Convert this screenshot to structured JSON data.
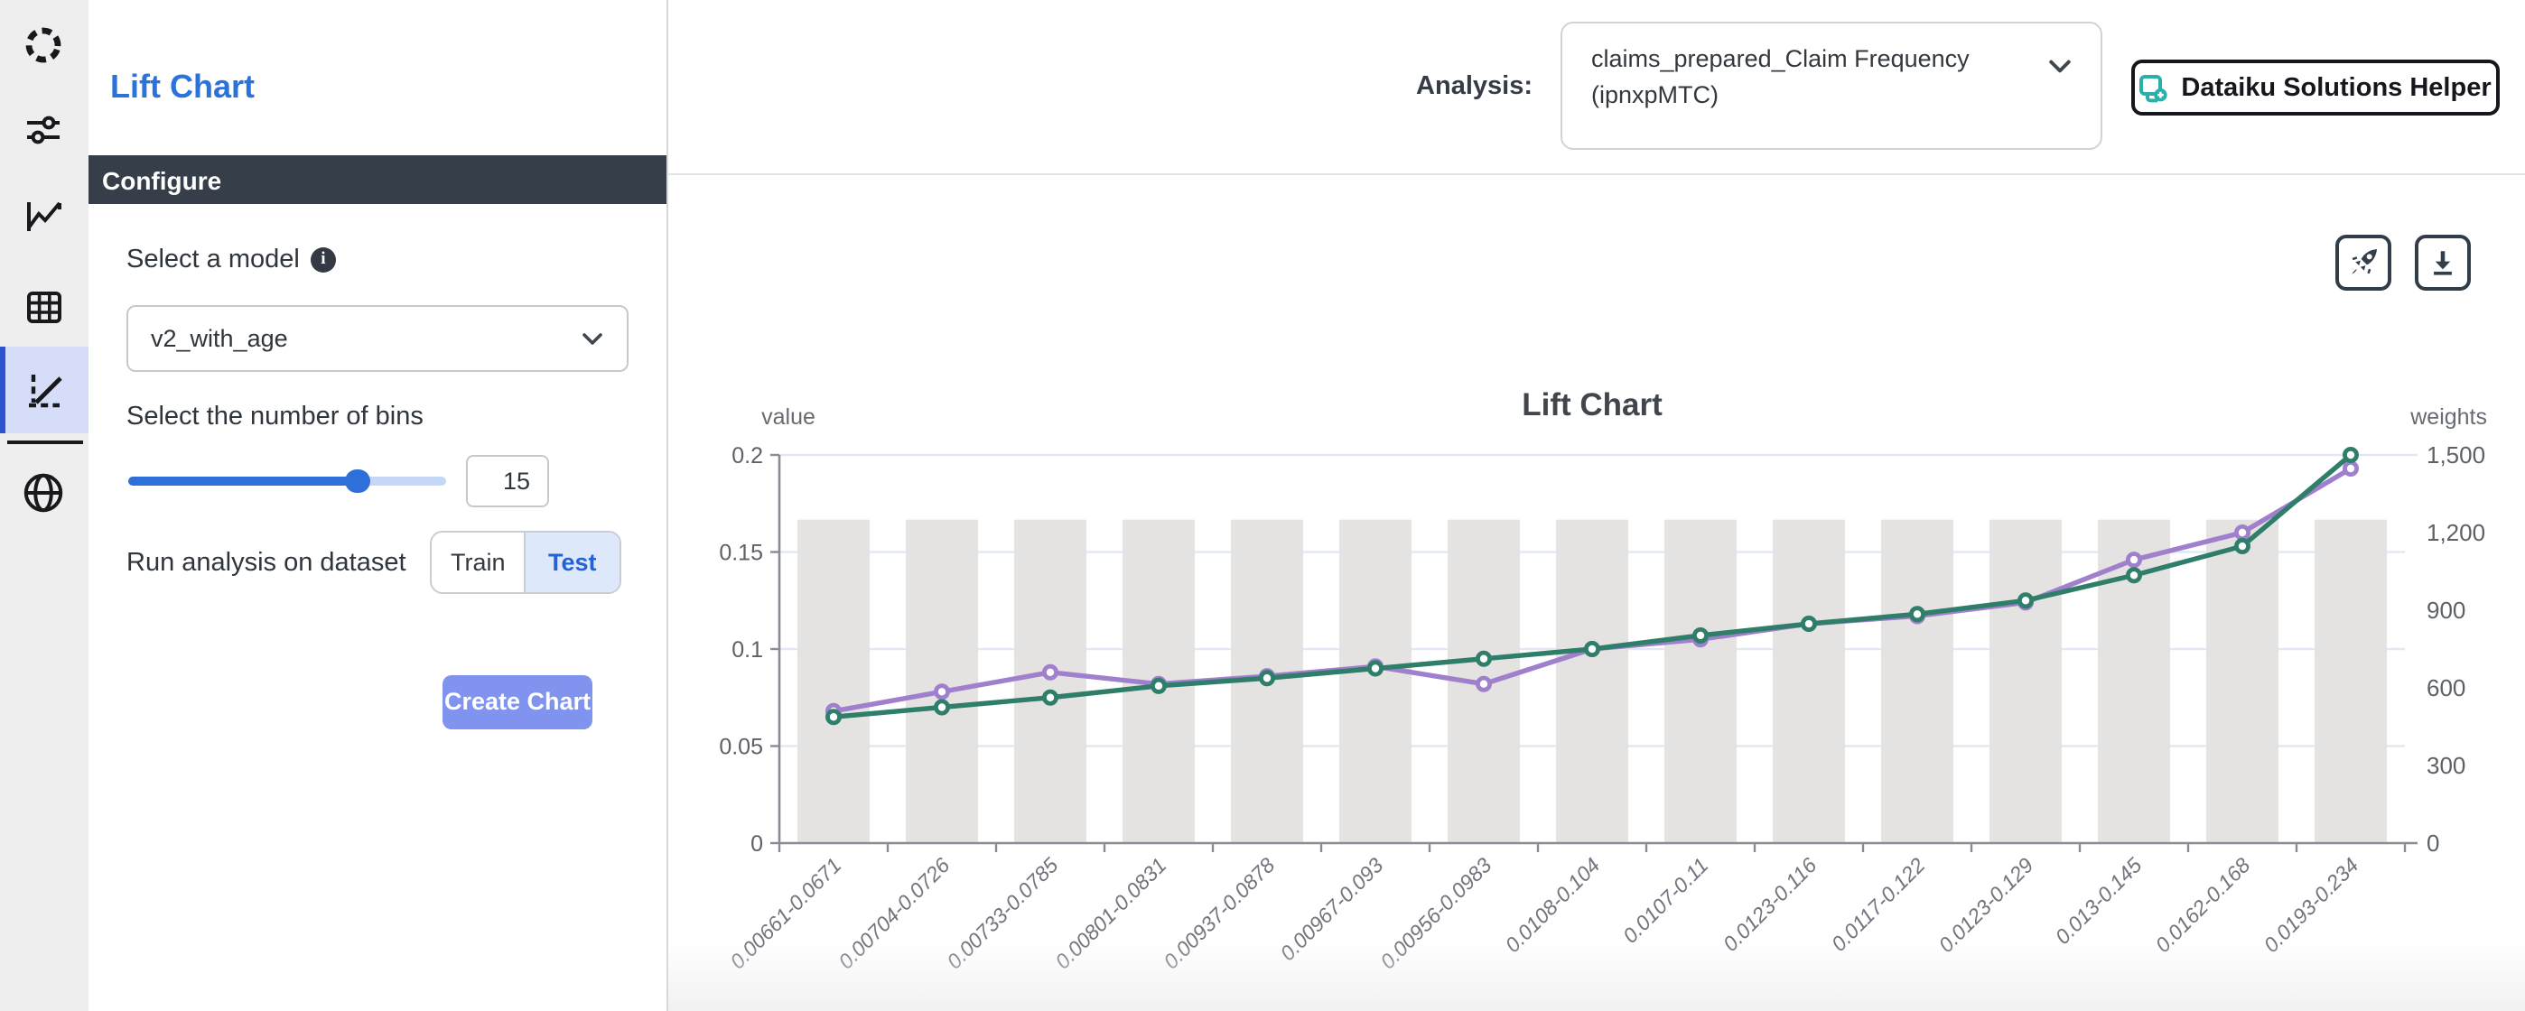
{
  "sidebar": {
    "icons": [
      {
        "name": "spinner-ring-icon"
      },
      {
        "name": "sliders-icon"
      },
      {
        "name": "line-chart-icon"
      },
      {
        "name": "table-icon"
      },
      {
        "name": "axes-chart-icon",
        "selected": true
      },
      {
        "name": "globe-icon"
      }
    ]
  },
  "panel": {
    "title": "Lift Chart",
    "section_header": "Configure",
    "model_label": "Select a model",
    "info_icon": "i",
    "model_value": "v2_with_age",
    "bins_label": "Select the number of bins",
    "bins_value": "15",
    "dataset_label": "Run analysis on dataset",
    "train_label": "Train",
    "test_label": "Test",
    "selected_dataset": "Test",
    "create_label": "Create Chart"
  },
  "header": {
    "analysis_label": "Analysis:",
    "analysis_value": "claims_prepared_Claim Frequency (ipnxpMTC)",
    "helper_label": "Dataiku Solutions Helper"
  },
  "colors": {
    "title_blue": "#2b72d9",
    "configure_bar": "#353e49",
    "create_button": "#8093ef",
    "test_active_bg": "#dde9fb",
    "test_active_text": "#2462d4",
    "slider_blue": "#2f6fd9",
    "helper_icon_teal": "#2ab0a8",
    "sidebar_selected_bg": "#d5ddf8",
    "sidebar_selected_accent": "#2d54cd"
  },
  "chart_data": {
    "type": "bar+line (dual axis)",
    "title": "Lift Chart",
    "categories": [
      "0.00661-0.0671",
      "0.00704-0.0726",
      "0.00733-0.0785",
      "0.00801-0.0831",
      "0.00937-0.0878",
      "0.00967-0.093",
      "0.00956-0.0983",
      "0.0108-0.104",
      "0.0107-0.11",
      "0.0123-0.116",
      "0.0117-0.122",
      "0.0123-0.129",
      "0.013-0.145",
      "0.0162-0.168",
      "0.0193-0.234"
    ],
    "series": [
      {
        "name": "weights-bars",
        "type": "bar",
        "axis": "right",
        "color": "#e4e3e1",
        "values": [
          1250,
          1250,
          1250,
          1250,
          1250,
          1250,
          1250,
          1250,
          1250,
          1250,
          1250,
          1250,
          1250,
          1250,
          1250
        ]
      },
      {
        "name": "lift-line-purple",
        "type": "line",
        "axis": "left",
        "color": "#a07fcd",
        "values": [
          0.068,
          0.078,
          0.088,
          0.082,
          0.086,
          0.091,
          0.082,
          0.1,
          0.105,
          0.113,
          0.117,
          0.124,
          0.146,
          0.16,
          0.193
        ]
      },
      {
        "name": "lift-line-green",
        "type": "line",
        "axis": "left",
        "color": "#2f7e6a",
        "values": [
          0.065,
          0.07,
          0.075,
          0.081,
          0.085,
          0.09,
          0.095,
          0.1,
          0.107,
          0.113,
          0.118,
          0.125,
          0.138,
          0.153,
          0.2
        ]
      }
    ],
    "left_axis": {
      "name": "value",
      "min": 0,
      "max": 0.2,
      "ticks": [
        {
          "label": "0",
          "value": 0
        },
        {
          "label": "0.05",
          "value": 0.05
        },
        {
          "label": "0.1",
          "value": 0.1
        },
        {
          "label": "0.15",
          "value": 0.15
        },
        {
          "label": "0.2",
          "value": 0.2
        }
      ]
    },
    "right_axis": {
      "name": "weights",
      "min": 0,
      "max": 1500,
      "ticks": [
        {
          "label": "0",
          "value": 0
        },
        {
          "label": "300",
          "value": 300
        },
        {
          "label": "600",
          "value": 600
        },
        {
          "label": "900",
          "value": 900
        },
        {
          "label": "1,200",
          "value": 1200
        },
        {
          "label": "1,500",
          "value": 1500
        }
      ]
    },
    "grid": "horizontal gridlines from left axis",
    "legend": "none",
    "x_labels_rotated_degrees": -45
  }
}
